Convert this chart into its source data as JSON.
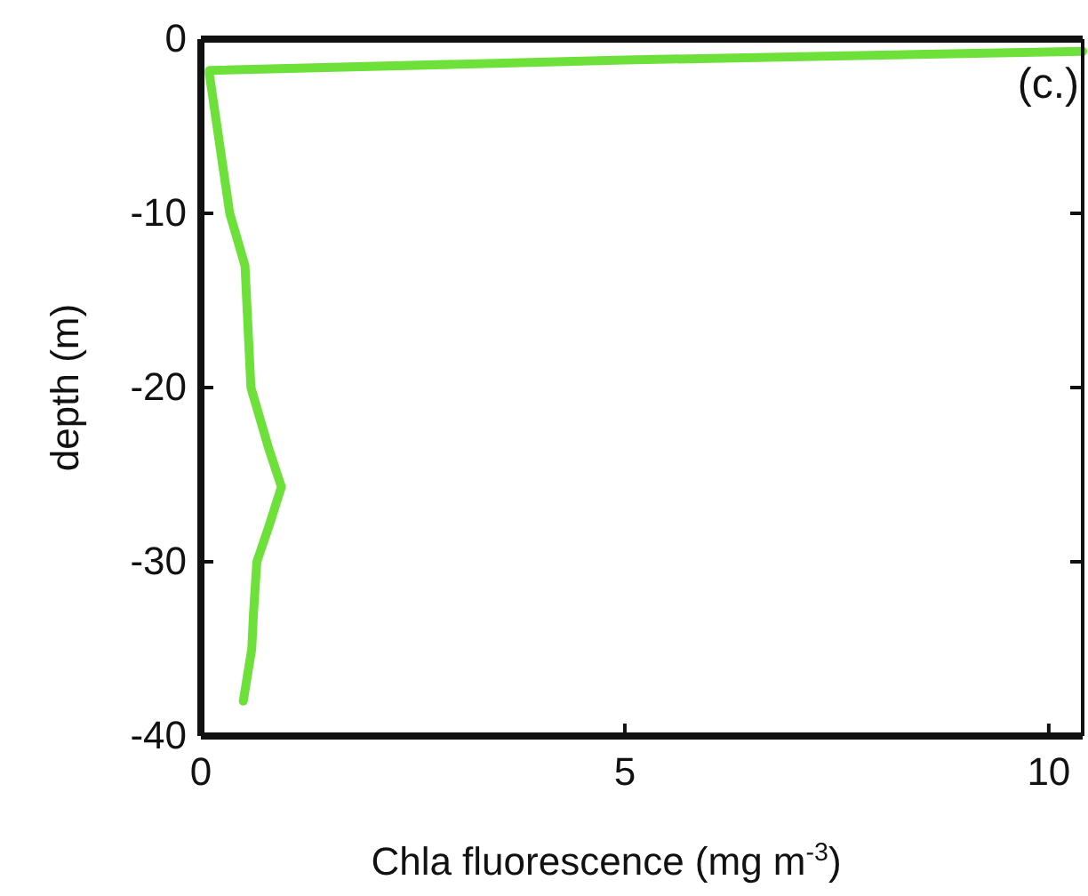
{
  "chart_data": {
    "type": "line",
    "xlabel": "Chla fluorescence (mg m$^{-3}$)",
    "ylabel": "depth (m)",
    "annotations": [
      "(c.)"
    ],
    "x": [
      10.4,
      5,
      0.1,
      0.1,
      0.34,
      0.52,
      0.59,
      0.8,
      0.95,
      0.8,
      0.66,
      0.62,
      0.6,
      0.5
    ],
    "series": [
      {
        "color": "#6ee03a",
        "values": [
          -0.7,
          -1.2,
          -1.8,
          -2,
          -10,
          -13,
          -20,
          -23.5,
          -25.7,
          -28,
          -30,
          -33,
          -35,
          -38
        ]
      }
    ],
    "xlim": [
      0,
      10.4
    ],
    "ylim": [
      -40,
      0
    ],
    "xticks": [
      0,
      5,
      10
    ],
    "yticks": [
      0,
      -10,
      -20,
      -30,
      -40
    ],
    "grid": false,
    "marker": "none",
    "line_style": "solid"
  }
}
